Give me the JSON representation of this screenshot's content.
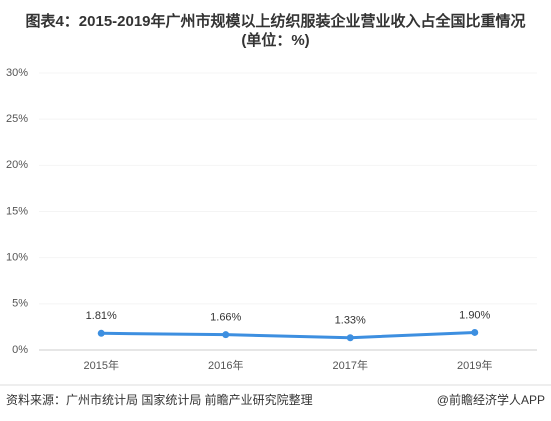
{
  "chart_data": {
    "type": "line",
    "title": "图表4：2015-2019年广州市规模以上纺织服装企业营业收入占全国比重情况(单位：%)",
    "categories": [
      "2015年",
      "2016年",
      "2017年",
      "2019年"
    ],
    "values": [
      1.81,
      1.66,
      1.33,
      1.9
    ],
    "value_labels": [
      "1.81%",
      "1.66%",
      "1.33%",
      "1.90%"
    ],
    "color": "#3d8fe0",
    "ylim": [
      0,
      30
    ],
    "yticks": [
      {
        "value": 0,
        "label": "0%"
      },
      {
        "value": 5,
        "label": "5%"
      },
      {
        "value": 10,
        "label": "10%"
      },
      {
        "value": 15,
        "label": "15%"
      },
      {
        "value": 20,
        "label": "20%"
      },
      {
        "value": 25,
        "label": "25%"
      },
      {
        "value": 30,
        "label": "30%"
      }
    ],
    "source": "资料来源：广州市统计局 国家统计局 前瞻产业研究院整理",
    "credit": "@前瞻经济学人APP"
  }
}
